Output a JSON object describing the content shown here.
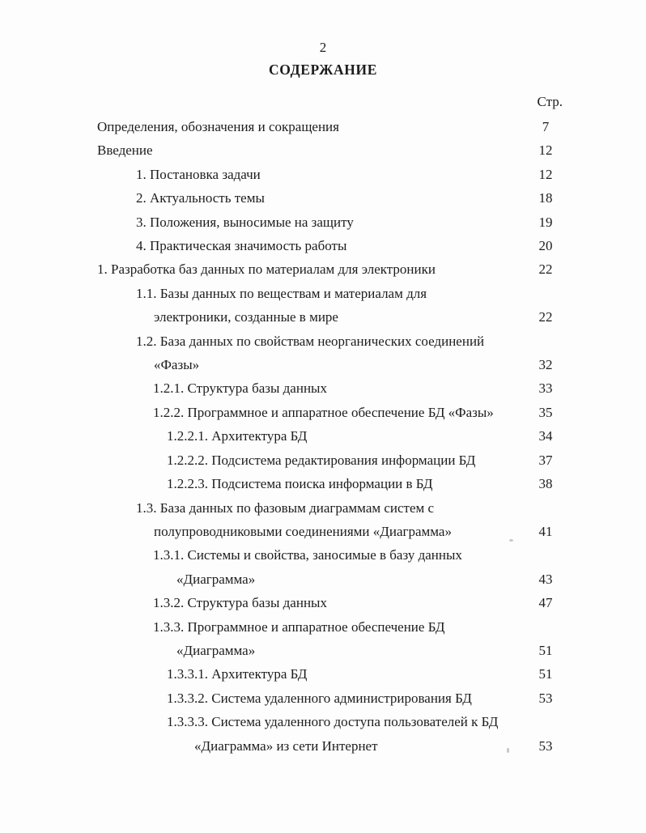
{
  "page": {
    "page_number": "2",
    "title": "СОДЕРЖАНИЕ",
    "column_header": "Стр."
  },
  "toc": {
    "entries": [
      {
        "level": 0,
        "lines": [
          "Определения, обозначения и сокращения"
        ],
        "page": "7"
      },
      {
        "level": 0,
        "lines": [
          "Введение"
        ],
        "page": "12"
      },
      {
        "level": 1,
        "lines": [
          "1. Постановка задачи"
        ],
        "page": "12"
      },
      {
        "level": 1,
        "lines": [
          "2. Актуальность темы"
        ],
        "page": "18"
      },
      {
        "level": 1,
        "lines": [
          "3. Положения, выносимые на защиту"
        ],
        "page": "19"
      },
      {
        "level": 1,
        "lines": [
          "4. Практическая значимость работы"
        ],
        "page": "20"
      },
      {
        "level": 0,
        "lines": [
          "1. Разработка баз данных по материалам для электроники"
        ],
        "page": "22"
      },
      {
        "level": 1,
        "lines": [
          "1.1. Базы данных по веществам и материалам для",
          "электроники, созданные в мире"
        ],
        "page": "22"
      },
      {
        "level": 1,
        "lines": [
          "1.2. База данных по свойствам неорганических соединений",
          "«Фазы»"
        ],
        "page": "32"
      },
      {
        "level": 2,
        "lines": [
          "1.2.1. Структура базы данных"
        ],
        "page": "33"
      },
      {
        "level": 2,
        "lines": [
          "1.2.2. Программное и аппаратное обеспечение БД «Фазы»"
        ],
        "page": "35"
      },
      {
        "level": 3,
        "lines": [
          "1.2.2.1. Архитектура БД"
        ],
        "page": "34"
      },
      {
        "level": 3,
        "lines": [
          "1.2.2.2. Подсистема редактирования информации БД"
        ],
        "page": "37"
      },
      {
        "level": 3,
        "lines": [
          "1.2.2.3. Подсистема поиска информации в БД"
        ],
        "page": "38"
      },
      {
        "level": 1,
        "lines": [
          "1.3. База данных по фазовым диаграммам систем с",
          "полупроводниковыми соединениями «Диаграмма»"
        ],
        "page": "41"
      },
      {
        "level": 2,
        "lines": [
          "1.3.1. Системы и свойства, заносимые в базу данных",
          "«Диаграмма»"
        ],
        "page": "43"
      },
      {
        "level": 2,
        "lines": [
          "1.3.2. Структура базы данных"
        ],
        "page": "47"
      },
      {
        "level": 2,
        "lines": [
          "1.3.3. Программное и аппаратное обеспечение БД",
          "«Диаграмма»"
        ],
        "page": "51"
      },
      {
        "level": 3,
        "lines": [
          "1.3.3.1. Архитектура БД"
        ],
        "page": "51"
      },
      {
        "level": 3,
        "lines": [
          "1.3.3.2. Система удаленного администрирования БД"
        ],
        "page": "53"
      },
      {
        "level": 3,
        "lines": [
          "1.3.3.3. Система удаленного доступа пользователей к БД",
          "«Диаграмма» из сети Интернет"
        ],
        "page": "53"
      }
    ]
  }
}
